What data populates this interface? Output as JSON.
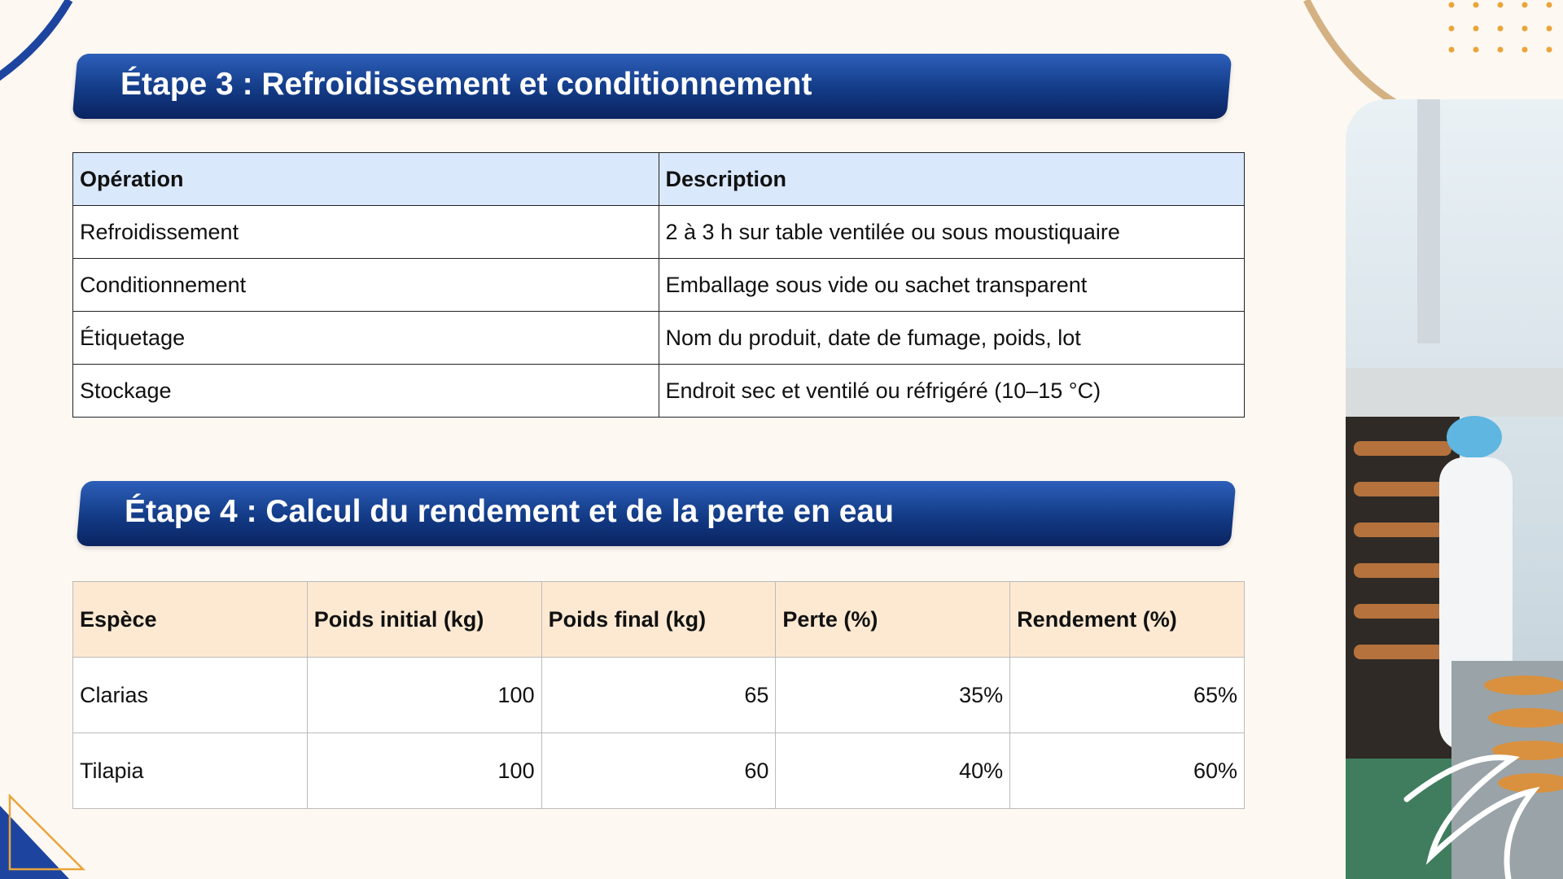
{
  "sections": [
    {
      "title": "Étape 3 : Refroidissement et conditionnement",
      "table": {
        "headers": [
          "Opération",
          "Description"
        ],
        "rows": [
          [
            "Refroidissement",
            "2 à 3 h sur table ventilée ou sous moustiquaire"
          ],
          [
            "Conditionnement",
            "Emballage sous vide ou sachet transparent"
          ],
          [
            "Étiquetage",
            "Nom du produit, date de fumage, poids, lot"
          ],
          [
            "Stockage",
            "Endroit sec et ventilé ou réfrigéré (10–15 °C)"
          ]
        ]
      }
    },
    {
      "title": "Étape 4 : Calcul du rendement et de la perte en eau",
      "table": {
        "headers": [
          "Espèce",
          "Poids initial (kg)",
          "Poids final (kg)",
          "Perte (%)",
          "Rendement (%)"
        ],
        "rows": [
          [
            "Clarias",
            "100",
            "65",
            "35%",
            "65%"
          ],
          [
            "Tilapia",
            "100",
            "60",
            "40%",
            "60%"
          ]
        ]
      }
    }
  ]
}
